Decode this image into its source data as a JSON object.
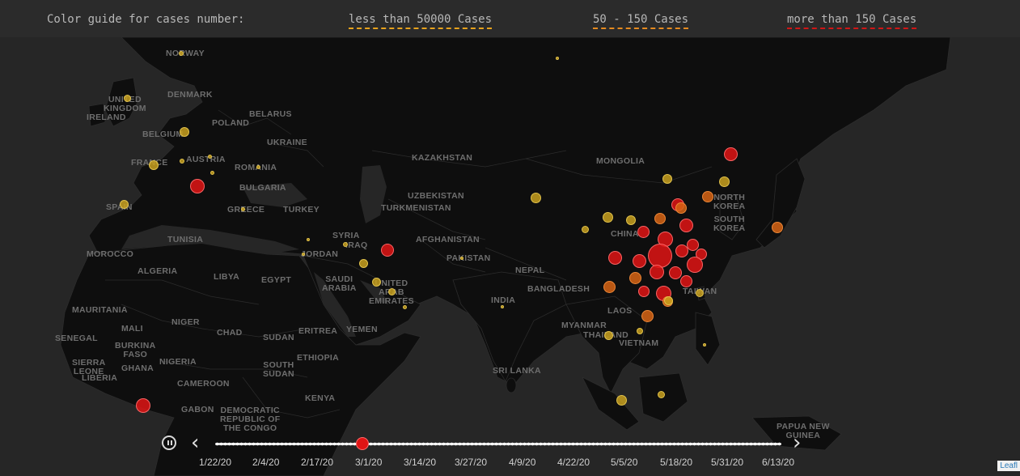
{
  "legend": {
    "title": "Color guide for cases number:",
    "low": "less than 50000 Cases",
    "mid": "50 - 150 Cases",
    "high": "more than 150 Cases",
    "colors": {
      "low": "#e7a21c",
      "mid": "#e58a1f",
      "high": "#d01616"
    }
  },
  "map": {
    "background": "#262626",
    "land_color": "#0d0d0d",
    "labels": {
      "norway": "NORWAY",
      "uk": "UNITED\nKINGDOM",
      "ireland": "IRELAND",
      "denmark": "DENMARK",
      "belarus": "BELARUS",
      "poland": "POLAND",
      "belgium": "BELGIUM",
      "ukraine": "UKRAINE",
      "france": "FRANCE",
      "austria": "AUSTRIA",
      "romania": "ROMANIA",
      "spain": "SPAIN",
      "bulgaria": "BULGARIA",
      "greece": "GREECE",
      "turkey": "TURKEY",
      "kazakhstan": "KAZAKHSTAN",
      "mongolia": "MONGOLIA",
      "uzbekistan": "UZBEKISTAN",
      "turkmenistan": "TURKMENISTAN",
      "tunisia": "TUNISIA",
      "syria": "SYRIA",
      "iraq": "IRAQ",
      "jordan": "JORDAN",
      "afghanistan": "AFGHANISTAN",
      "pakistan": "PAKISTAN",
      "morocco": "MOROCCO",
      "algeria": "ALGERIA",
      "libya": "LIBYA",
      "egypt": "EGYPT",
      "saudi": "SAUDI\nARABIA",
      "uae": "UNITED\nARAB\nEMIRATES",
      "nepal": "NEPAL",
      "bangladesh": "BANGLADESH",
      "india": "INDIA",
      "china": "CHINA",
      "north_korea": "NORTH\nKOREA",
      "south_korea": "SOUTH\nKOREA",
      "taiwan": "TAIWAN",
      "laos": "LAOS",
      "myanmar": "MYANMAR",
      "thailand": "THAILAND",
      "vietnam": "VIETNAM",
      "mauritania": "MAURITANIA",
      "mali": "MALI",
      "niger": "NIGER",
      "chad": "CHAD",
      "sudan": "SUDAN",
      "eritrea": "ERITREA",
      "yemen": "YEMEN",
      "senegal": "SENEGAL",
      "burkina": "BURKINA\nFASO",
      "nigeria": "NIGERIA",
      "sierra_leone": "SIERRA\nLEONE",
      "ghana": "GHANA",
      "liberia": "LIBERIA",
      "ethiopia": "ETHIOPIA",
      "south_sudan": "SOUTH\nSUDAN",
      "cameroon": "CAMEROON",
      "gabon": "GABON",
      "drc": "DEMOCRATIC\nREPUBLIC OF\nTHE CONGO",
      "kenya": "KENYA",
      "sri_lanka": "SRI LANKA",
      "png": "PAPUA NEW\nGUINEA"
    }
  },
  "timeline": {
    "play_state": "pause",
    "current_date": "3/1/20",
    "dates": [
      "1/22/20",
      "2/4/20",
      "2/17/20",
      "3/1/20",
      "3/14/20",
      "3/27/20",
      "4/9/20",
      "4/22/20",
      "5/5/20",
      "5/18/20",
      "5/31/20",
      "6/13/20"
    ]
  },
  "attribution": "Leafl"
}
